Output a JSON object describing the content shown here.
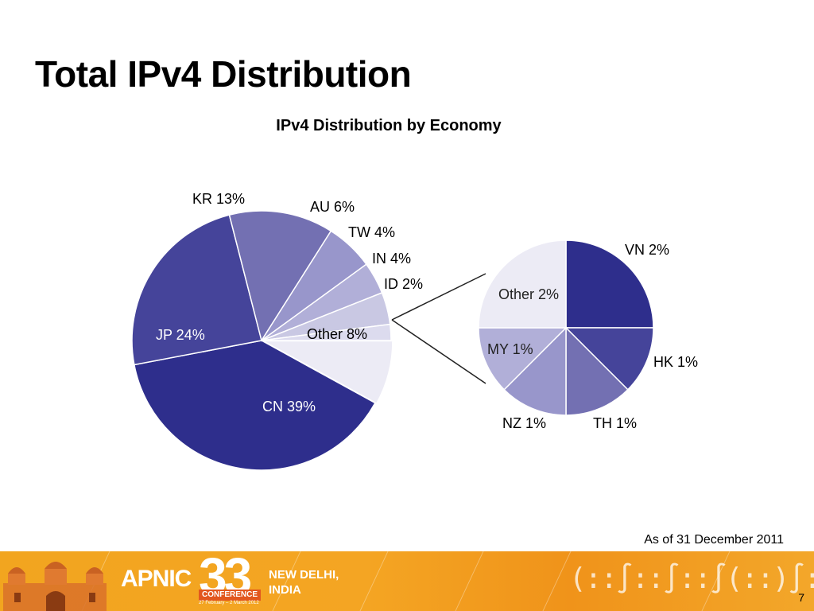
{
  "slide": {
    "title": "Total IPv4 Distribution",
    "footnote": "As of 31 December 2011",
    "page_number": "7"
  },
  "footer": {
    "org": "APNIC",
    "conference_number": "33",
    "conference_label": "CONFERENCE",
    "conference_dates": "27 February – 2 March 2012",
    "city": "NEW DELHI,\nINDIA",
    "colors": {
      "bar": "#f4a523",
      "tag": "#e2571e"
    }
  },
  "chart_data": [
    {
      "type": "pie",
      "title": "IPv4 Distribution by Economy",
      "categories": [
        "CN",
        "JP",
        "KR",
        "AU",
        "TW",
        "IN",
        "ID",
        "Other"
      ],
      "values": [
        39,
        24,
        13,
        6,
        4,
        4,
        2,
        8
      ],
      "labels": [
        "CN 39%",
        "JP 24%",
        "KR 13%",
        "AU 6%",
        "TW 4%",
        "IN 4%",
        "ID 2%",
        "Other 8%"
      ],
      "colors": [
        "#2e2e8c",
        "#45449a",
        "#7370b2",
        "#9896cb",
        "#b1afd8",
        "#c9c8e3",
        "#dcdbee",
        "#ecebf5"
      ],
      "exploded_slice": "Other"
    },
    {
      "type": "pie",
      "title": "",
      "categories": [
        "VN",
        "HK",
        "TH",
        "NZ",
        "MY",
        "Other"
      ],
      "values": [
        2,
        1,
        1,
        1,
        1,
        2
      ],
      "labels": [
        "VN 2%",
        "HK 1%",
        "TH 1%",
        "NZ 1%",
        "MY 1%",
        "Other 2%"
      ],
      "colors": [
        "#2e2e8c",
        "#45449a",
        "#7370b2",
        "#9896cb",
        "#b1afd8",
        "#ecebf5"
      ]
    }
  ]
}
